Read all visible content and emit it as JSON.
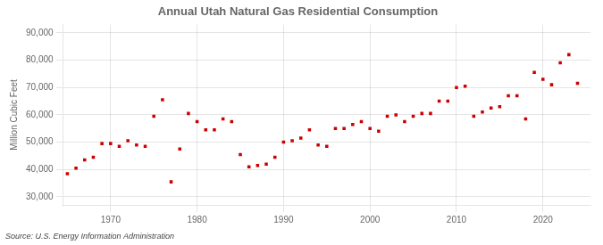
{
  "chart_data": {
    "type": "scatter",
    "title": "Annual Utah Natural Gas Residential Consumption",
    "ylabel": "Million Cubic Feet",
    "source": "Source: U.S. Energy Information Administration",
    "color": "#cc0000",
    "marker": "square",
    "grid": true,
    "xlim": [
      1964.5,
      2025.5
    ],
    "xticks": [
      1970,
      1980,
      1990,
      2000,
      2010,
      2020
    ],
    "ylim": [
      27000,
      93000
    ],
    "yticks": [
      {
        "value": 30000,
        "label": "30,000"
      },
      {
        "value": 40000,
        "label": "40,000"
      },
      {
        "value": 50000,
        "label": "50,000"
      },
      {
        "value": 60000,
        "label": "60,000"
      },
      {
        "value": 70000,
        "label": "70,000"
      },
      {
        "value": 80000,
        "label": "80,000"
      },
      {
        "value": 90000,
        "label": "90,000"
      }
    ],
    "x": [
      1965,
      1966,
      1967,
      1968,
      1969,
      1970,
      1971,
      1972,
      1973,
      1974,
      1975,
      1976,
      1977,
      1978,
      1979,
      1980,
      1981,
      1982,
      1983,
      1984,
      1985,
      1986,
      1987,
      1988,
      1989,
      1990,
      1991,
      1992,
      1993,
      1994,
      1995,
      1996,
      1997,
      1998,
      1999,
      2000,
      2001,
      2002,
      2003,
      2004,
      2005,
      2006,
      2007,
      2008,
      2009,
      2010,
      2011,
      2012,
      2013,
      2014,
      2015,
      2016,
      2017,
      2018,
      2019,
      2020,
      2021,
      2022,
      2023,
      2024
    ],
    "values": [
      38500,
      40500,
      43500,
      44500,
      49500,
      49500,
      48500,
      50500,
      49000,
      48500,
      59500,
      65500,
      35500,
      47500,
      60500,
      57500,
      54500,
      54500,
      58500,
      57500,
      45500,
      41000,
      41500,
      42000,
      44500,
      50000,
      50500,
      51500,
      54500,
      49000,
      48500,
      55000,
      55000,
      56500,
      57500,
      55000,
      54000,
      59500,
      60000,
      57500,
      59500,
      60500,
      60500,
      65000,
      65000,
      70000,
      70500,
      59500,
      61000,
      62500,
      63000,
      67000,
      67000,
      58500,
      75500,
      73000,
      71000,
      79000,
      82000,
      71500
    ]
  }
}
